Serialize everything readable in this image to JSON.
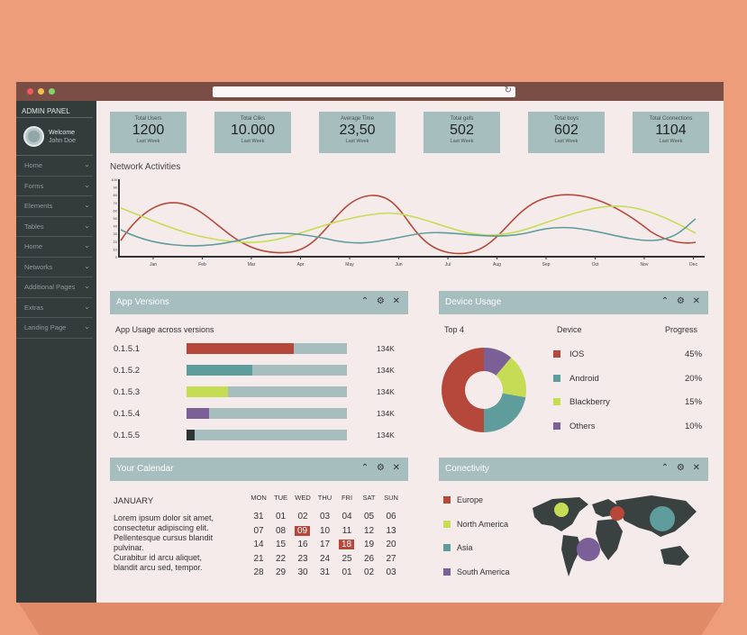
{
  "sidebar": {
    "title": "ADMIN PANEL",
    "welcome": "Welcome",
    "user": "John Doe",
    "items": [
      "Home",
      "Forms",
      "Elements",
      "Tables",
      "Home",
      "Networks",
      "Additional Pages",
      "Extras",
      "Landing Page"
    ]
  },
  "stats": [
    {
      "label": "Total Users",
      "value": "1200",
      "sub": "Last Week"
    },
    {
      "label": "Total Cliks",
      "value": "10.000",
      "sub": "Last Week"
    },
    {
      "label": "Average Time",
      "value": "23,50",
      "sub": "Last Week"
    },
    {
      "label": "Total gefs",
      "value": "502",
      "sub": "Last Week"
    },
    {
      "label": "Total boys",
      "value": "602",
      "sub": "Last Week"
    },
    {
      "label": "Total Connections",
      "value": "1104",
      "sub": "Last Week"
    }
  ],
  "network": {
    "title": "Network Activities",
    "y_ticks": [
      "100",
      "90",
      "80",
      "70",
      "60",
      "50",
      "40",
      "30",
      "20",
      "10",
      "0"
    ],
    "months": [
      "Jan",
      "Feb",
      "Mar",
      "Apr",
      "May",
      "Jun",
      "Jul",
      "Aug",
      "Sep",
      "Oct",
      "Nov",
      "Dec"
    ],
    "colors": {
      "red": "#b5483a",
      "green": "#c7dc55",
      "teal": "#5f9c9c"
    }
  },
  "app_versions": {
    "title": "App Versions",
    "subtitle": "App Usage across versions",
    "rows": [
      {
        "version": "0.1.5.1",
        "value": "134K",
        "fill": 0.67,
        "color": "#b5483a"
      },
      {
        "version": "0.1.5.2",
        "value": "134K",
        "fill": 0.41,
        "color": "#5f9c9c"
      },
      {
        "version": "0.1.5.3",
        "value": "134K",
        "fill": 0.26,
        "color": "#c7dc55"
      },
      {
        "version": "0.1.5.4",
        "value": "134K",
        "fill": 0.14,
        "color": "#7a6097"
      },
      {
        "version": "0.1.5.5",
        "value": "134K",
        "fill": 0.05,
        "color": "#2e3333"
      }
    ]
  },
  "device_usage": {
    "title": "Device Usage",
    "top_label": "Top 4",
    "device_header": "Device",
    "progress_header": "Progress",
    "devices": [
      {
        "name": "IOS",
        "progress": "45%",
        "color": "#b5483a"
      },
      {
        "name": "Android",
        "progress": "20%",
        "color": "#5f9c9c"
      },
      {
        "name": "Blackberry",
        "progress": "15%",
        "color": "#c7dc55"
      },
      {
        "name": "Others",
        "progress": "10%",
        "color": "#7a6097"
      }
    ]
  },
  "calendar": {
    "title": "Your Calendar",
    "month": "JANUARY",
    "text": [
      "Lorem ipsum dolor sit amet,",
      "consectetur adipiscing elit.",
      "Pellentesque cursus blandit",
      "pulvinar.",
      "Curabitur id arcu aliquet,",
      "blandit arcu sed, tempor."
    ],
    "days": [
      "MON",
      "TUE",
      "WED",
      "THU",
      "FRI",
      "SAT",
      "SUN"
    ],
    "weeks": [
      [
        "31",
        "01",
        "02",
        "03",
        "04",
        "05",
        "06"
      ],
      [
        "07",
        "08",
        "09",
        "10",
        "11",
        "12",
        "13"
      ],
      [
        "14",
        "15",
        "16",
        "17",
        "18",
        "19",
        "20"
      ],
      [
        "21",
        "22",
        "23",
        "24",
        "25",
        "26",
        "27"
      ],
      [
        "28",
        "29",
        "30",
        "31",
        "01",
        "02",
        "03"
      ]
    ],
    "highlight_color": "#b5483a",
    "highlighted": [
      "09",
      "18"
    ]
  },
  "connectivity": {
    "title": "Conectivity",
    "regions": [
      {
        "name": "Europe",
        "color": "#b5483a"
      },
      {
        "name": "North America",
        "color": "#c7dc55"
      },
      {
        "name": "Asia",
        "color": "#5f9c9c"
      },
      {
        "name": "South America",
        "color": "#7a6097"
      }
    ]
  },
  "panel_controls": [
    "^",
    "o",
    "x"
  ]
}
